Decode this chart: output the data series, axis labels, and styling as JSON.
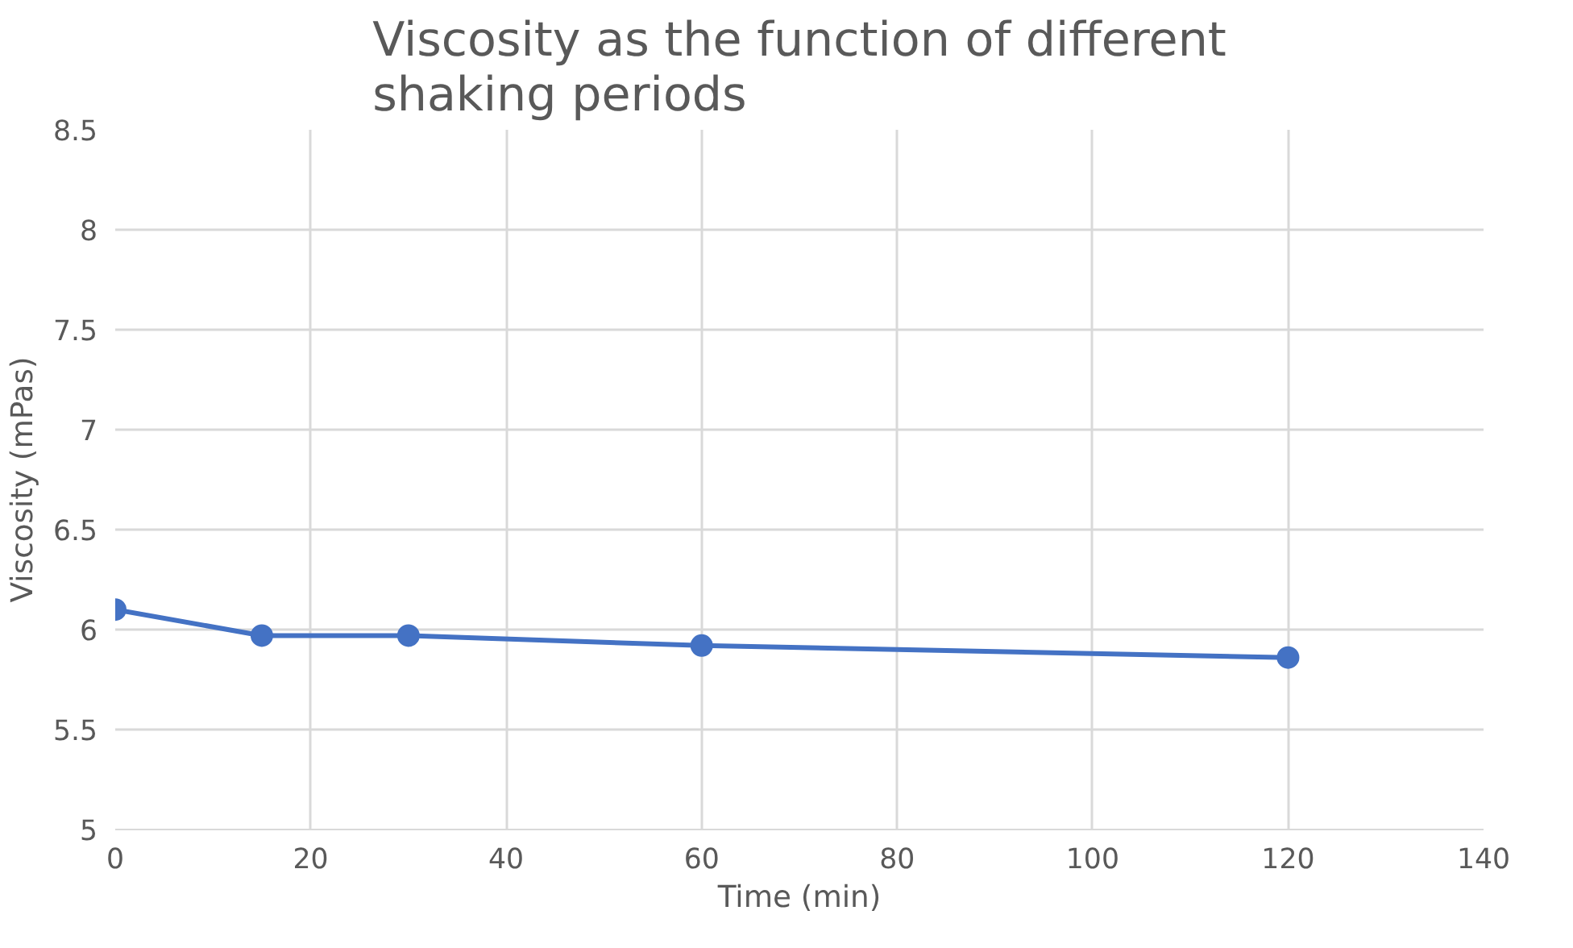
{
  "chart_data": {
    "type": "line",
    "title": "Viscosity as the function of different shaking periods",
    "xlabel": "Time (min)",
    "ylabel": "Viscosity (mPas)",
    "x": [
      0,
      15,
      30,
      60,
      120
    ],
    "series": [
      {
        "color": "#4472c4",
        "values": [
          6.1,
          5.97,
          5.97,
          5.92,
          5.86
        ]
      }
    ],
    "xlim": [
      0,
      140
    ],
    "xticks": [
      0,
      20,
      40,
      60,
      80,
      100,
      120,
      140
    ],
    "ylim": [
      5,
      8.5
    ],
    "yticks": [
      5,
      5.5,
      6,
      6.5,
      7,
      7.5,
      8,
      8.5
    ],
    "grid": true,
    "marker": "circle",
    "line_style": "solid"
  }
}
